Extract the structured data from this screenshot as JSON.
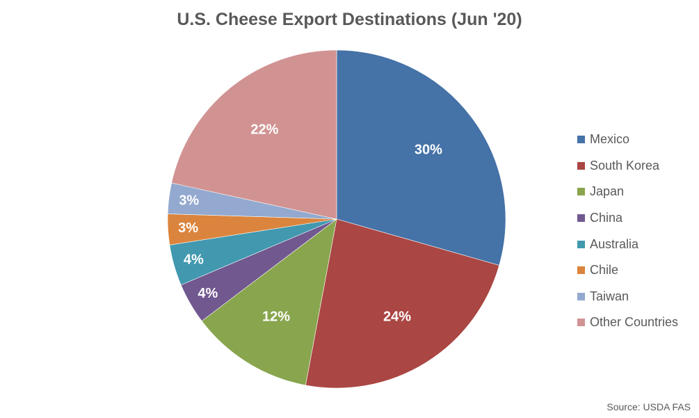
{
  "chart_data": {
    "type": "pie",
    "title": "U.S. Cheese Export Destinations (Jun '20)",
    "categories": [
      "Mexico",
      "South Korea",
      "Japan",
      "China",
      "Australia",
      "Chile",
      "Taiwan",
      "Other Countries"
    ],
    "values": [
      30,
      24,
      12,
      4,
      4,
      3,
      3,
      22
    ],
    "data_labels": [
      "30%",
      "24%",
      "12%",
      "4%",
      "4%",
      "3%",
      "3%",
      "22%"
    ],
    "colors": [
      "#4572A7",
      "#AA4643",
      "#89A54E",
      "#71588F",
      "#4198AF",
      "#DB843D",
      "#93A9CF",
      "#D19392"
    ],
    "legend_position": "right",
    "source": "Source: USDA FAS"
  }
}
